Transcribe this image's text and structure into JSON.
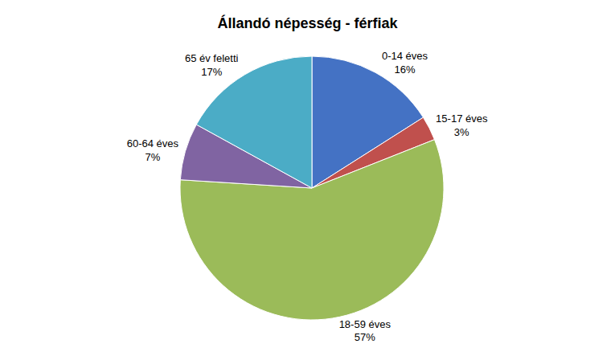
{
  "chart_data": {
    "type": "pie",
    "title": "Állandó népesség - férfiak",
    "categories": [
      "0-14 éves\n16%",
      "15-17 éves\n3%",
      "18-59 éves\n57%",
      "60-64 éves\n7%",
      "65 év feletti\n17%"
    ],
    "values": [
      16,
      3,
      57,
      7,
      17
    ],
    "colors": [
      "#4472C4",
      "#C0504D",
      "#9BBB59",
      "#8064A2",
      "#4BACC6"
    ],
    "legend": false
  }
}
